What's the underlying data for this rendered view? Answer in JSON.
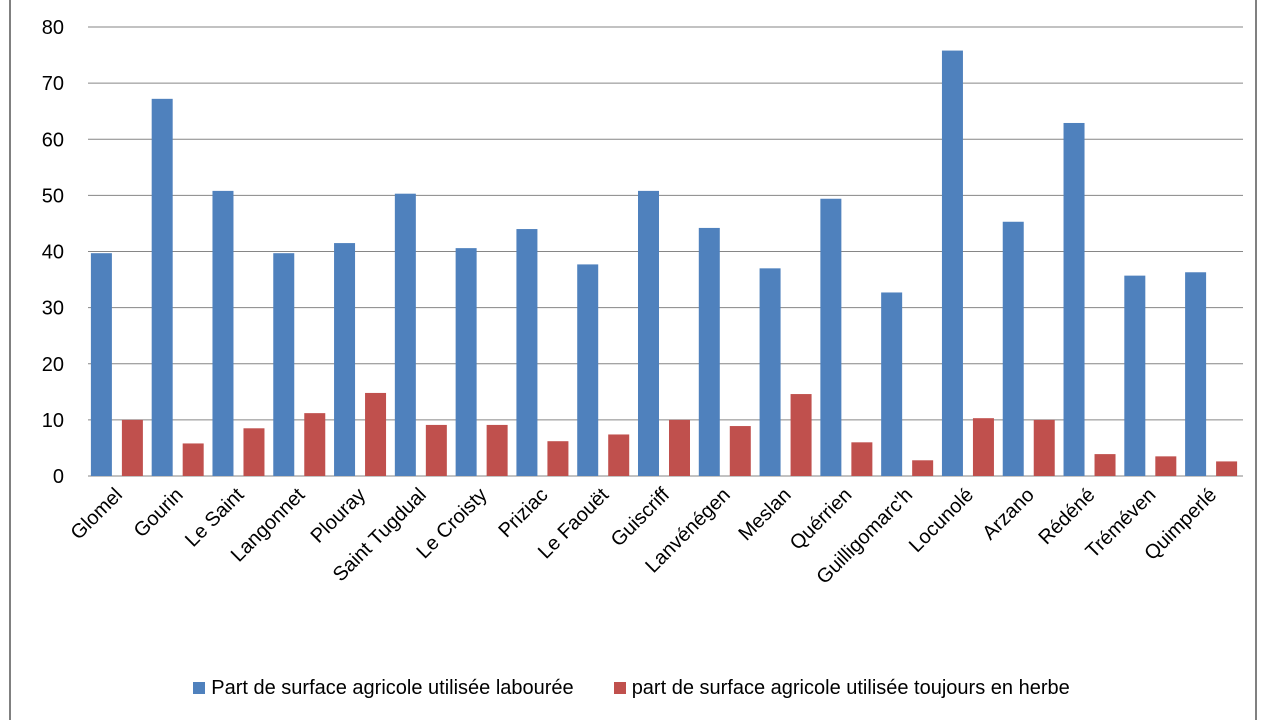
{
  "chart_data": {
    "type": "bar",
    "categories": [
      "Glomel",
      "Gourin",
      "Le Saint",
      "Langonnet",
      "Plouray",
      "Saint Tugdual",
      "Le Croisty",
      "Priziac",
      "Le Faouët",
      "Guiscriff",
      "Lanvénégen",
      "Meslan",
      "Quérrien",
      "Guilligomarc'h",
      "Locunolé",
      "Arzano",
      "Rédéné",
      "Tréméven",
      "Quimperlé"
    ],
    "series": [
      {
        "name": "Part de surface agricole utilisée labourée",
        "color": "#4f81bd",
        "values": [
          39.7,
          67.2,
          50.8,
          39.7,
          41.5,
          50.3,
          40.6,
          44.0,
          37.7,
          50.8,
          44.2,
          37.0,
          49.4,
          32.7,
          75.8,
          45.3,
          62.9,
          35.7,
          36.3
        ]
      },
      {
        "name": "part de surface agricole utilisée toujours en herbe",
        "color": "#c0504d",
        "values": [
          10.0,
          5.8,
          8.5,
          11.2,
          14.8,
          9.1,
          9.1,
          6.2,
          7.4,
          10.0,
          8.9,
          14.6,
          6.0,
          2.8,
          10.3,
          10.0,
          3.9,
          3.5,
          2.6
        ]
      }
    ],
    "yticks": [
      "0",
      "10",
      "20",
      "30",
      "40",
      "50",
      "60",
      "70",
      "80"
    ],
    "ylim": [
      0,
      80
    ],
    "grid": true,
    "legend_position": "bottom",
    "title": "",
    "xlabel": "",
    "ylabel": ""
  }
}
